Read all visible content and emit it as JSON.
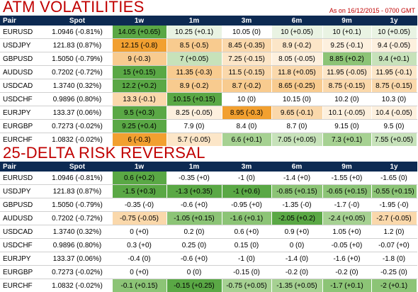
{
  "atm": {
    "title": "ATM VOLATILITIES",
    "as_of": "As on 16/12/2015 - 0700 GMT",
    "headers": [
      "Pair",
      "Spot",
      "1w",
      "1m",
      "3m",
      "6m",
      "9m",
      "1y"
    ],
    "rows": [
      {
        "pair": "EURUSD",
        "spot": "1.0946 (-0.81%)",
        "cells": [
          {
            "v": "14.05 (+0.65)",
            "c": "#5aa845"
          },
          {
            "v": "10.25 (+0.1)",
            "c": "#e9f3e3"
          },
          {
            "v": "10.05 (0)",
            "c": "#ffffff"
          },
          {
            "v": "10 (+0.05)",
            "c": "#e9f3e3"
          },
          {
            "v": "10 (+0.1)",
            "c": "#e9f3e3"
          },
          {
            "v": "10 (+0.05)",
            "c": "#e9f3e3"
          }
        ]
      },
      {
        "pair": "USDJPY",
        "spot": "121.83 (0.87%)",
        "cells": [
          {
            "v": "12.15 (-0.8)",
            "c": "#f2a030"
          },
          {
            "v": "8.5 (-0.5)",
            "c": "#f8cb8f"
          },
          {
            "v": "8.45 (-0.35)",
            "c": "#fad8ab"
          },
          {
            "v": "8.9 (-0.2)",
            "c": "#fce6c8"
          },
          {
            "v": "9.25 (-0.1)",
            "c": "#fdf0de"
          },
          {
            "v": "9.4 (-0.05)",
            "c": "#fdf0de"
          }
        ]
      },
      {
        "pair": "GBPUSD",
        "spot": "1.5050 (-0.79%)",
        "cells": [
          {
            "v": "9 (-0.3)",
            "c": "#f8cb8f"
          },
          {
            "v": "7 (+0.05)",
            "c": "#c7e2ba"
          },
          {
            "v": "7.25 (-0.15)",
            "c": "#fce6c8"
          },
          {
            "v": "8.05 (-0.05)",
            "c": "#fdf0de"
          },
          {
            "v": "8.85 (+0.2)",
            "c": "#8cc476"
          },
          {
            "v": "9.4 (+0.1)",
            "c": "#c7e2ba"
          }
        ]
      },
      {
        "pair": "AUDUSD",
        "spot": "0.7202 (-0.72%)",
        "cells": [
          {
            "v": "15 (+0.15)",
            "c": "#5aa845"
          },
          {
            "v": "11.35 (-0.3)",
            "c": "#f8cb8f"
          },
          {
            "v": "11.5 (-0.15)",
            "c": "#fad8ab"
          },
          {
            "v": "11.8 (+0.05)",
            "c": "#fad8ab"
          },
          {
            "v": "11.95 (-0.05)",
            "c": "#fce6c8"
          },
          {
            "v": "11.95 (-0.1)",
            "c": "#fce6c8"
          }
        ]
      },
      {
        "pair": "USDCAD",
        "spot": "1.3740 (0.32%)",
        "cells": [
          {
            "v": "12.2 (+0.2)",
            "c": "#5aa845"
          },
          {
            "v": "8.9 (-0.2)",
            "c": "#f8cb8f"
          },
          {
            "v": "8.7 (-0.2)",
            "c": "#f8cb8f"
          },
          {
            "v": "8.65 (-0.25)",
            "c": "#f8cb8f"
          },
          {
            "v": "8.75 (-0.15)",
            "c": "#fad8ab"
          },
          {
            "v": "8.75 (-0.15)",
            "c": "#fad8ab"
          }
        ]
      },
      {
        "pair": "USDCHF",
        "spot": "0.9896 (0.80%)",
        "cells": [
          {
            "v": "13.3 (-0.1)",
            "c": "#fad8ab"
          },
          {
            "v": "10.15 (+0.15)",
            "c": "#5aa845"
          },
          {
            "v": "10 (0)",
            "c": "#ffffff"
          },
          {
            "v": "10.15 (0)",
            "c": "#ffffff"
          },
          {
            "v": "10.2 (0)",
            "c": "#ffffff"
          },
          {
            "v": "10.3 (0)",
            "c": "#ffffff"
          }
        ]
      },
      {
        "pair": "EURJPY",
        "spot": "133.37 (0.06%)",
        "cells": [
          {
            "v": "9.5 (+0.3)",
            "c": "#5aa845"
          },
          {
            "v": "8.25 (-0.05)",
            "c": "#fdf0de"
          },
          {
            "v": "8.95 (-0.3)",
            "c": "#f2a030"
          },
          {
            "v": "9.65 (-0.1)",
            "c": "#fad8ab"
          },
          {
            "v": "10.1 (-0.05)",
            "c": "#fdf0de"
          },
          {
            "v": "10.4 (-0.05)",
            "c": "#fdf0de"
          }
        ]
      },
      {
        "pair": "EURGBP",
        "spot": "0.7273 (-0.02%)",
        "cells": [
          {
            "v": "9.25 (+0.4)",
            "c": "#5aa845"
          },
          {
            "v": "7.9 (0)",
            "c": "#ffffff"
          },
          {
            "v": "8.4 (0)",
            "c": "#ffffff"
          },
          {
            "v": "8.7 (0)",
            "c": "#ffffff"
          },
          {
            "v": "9.15 (0)",
            "c": "#ffffff"
          },
          {
            "v": "9.5 (0)",
            "c": "#ffffff"
          }
        ]
      },
      {
        "pair": "EURCHF",
        "spot": "1.0832 (-0.02%)",
        "cells": [
          {
            "v": "6 (-0.3)",
            "c": "#f2a030"
          },
          {
            "v": "5.7 (-0.05)",
            "c": "#fce6c8"
          },
          {
            "v": "6.6 (+0.1)",
            "c": "#a6d192"
          },
          {
            "v": "7.05 (+0.05)",
            "c": "#c7e2ba"
          },
          {
            "v": "7.3 (+0.1)",
            "c": "#a6d192"
          },
          {
            "v": "7.55 (+0.05)",
            "c": "#c7e2ba"
          }
        ]
      }
    ]
  },
  "rr": {
    "title": "25-DELTA RISK REVERSAL",
    "headers": [
      "Pair",
      "Spot",
      "1w",
      "1m",
      "3m",
      "6m",
      "9m",
      "1y"
    ],
    "rows": [
      {
        "pair": "EURUSD",
        "spot": "1.0946 (-0.81%)",
        "cells": [
          {
            "v": "0.6 (+0.2)",
            "c": "#5aa845"
          },
          {
            "v": "-0.35 (+0)",
            "c": "#ffffff"
          },
          {
            "v": "-1 (0)",
            "c": "#ffffff"
          },
          {
            "v": "-1.4 (+0)",
            "c": "#ffffff"
          },
          {
            "v": "-1.55 (+0)",
            "c": "#ffffff"
          },
          {
            "v": "-1.65 (0)",
            "c": "#ffffff"
          }
        ]
      },
      {
        "pair": "USDJPY",
        "spot": "121.83 (0.87%)",
        "cells": [
          {
            "v": "-1.5 (+0.3)",
            "c": "#5aa845"
          },
          {
            "v": "-1.3 (+0.35)",
            "c": "#5aa845"
          },
          {
            "v": "-1 (+0.6)",
            "c": "#5aa845"
          },
          {
            "v": "-0.85 (+0.15)",
            "c": "#8cc476"
          },
          {
            "v": "-0.65 (+0.15)",
            "c": "#8cc476"
          },
          {
            "v": "-0.55 (+0.15)",
            "c": "#8cc476"
          }
        ]
      },
      {
        "pair": "GBPUSD",
        "spot": "1.5050 (-0.79%)",
        "cells": [
          {
            "v": "-0.35 (-0)",
            "c": "#ffffff"
          },
          {
            "v": "-0.6 (+0)",
            "c": "#ffffff"
          },
          {
            "v": "-0.95 (+0)",
            "c": "#ffffff"
          },
          {
            "v": "-1.35 (-0)",
            "c": "#ffffff"
          },
          {
            "v": "-1.7 (-0)",
            "c": "#ffffff"
          },
          {
            "v": "-1.95 (-0)",
            "c": "#ffffff"
          }
        ]
      },
      {
        "pair": "AUDUSD",
        "spot": "0.7202 (-0.72%)",
        "cells": [
          {
            "v": "-0.75 (-0.05)",
            "c": "#fad8ab"
          },
          {
            "v": "-1.05 (+0.15)",
            "c": "#8cc476"
          },
          {
            "v": "-1.6 (+0.1)",
            "c": "#8cc476"
          },
          {
            "v": "-2.05 (+0.2)",
            "c": "#5aa845"
          },
          {
            "v": "-2.4 (+0.05)",
            "c": "#a6d192"
          },
          {
            "v": "-2.7 (-0.05)",
            "c": "#fad8ab"
          }
        ]
      },
      {
        "pair": "USDCAD",
        "spot": "1.3740 (0.32%)",
        "cells": [
          {
            "v": "0 (+0)",
            "c": "#ffffff"
          },
          {
            "v": "0.2 (0)",
            "c": "#ffffff"
          },
          {
            "v": "0.6 (+0)",
            "c": "#ffffff"
          },
          {
            "v": "0.9 (+0)",
            "c": "#ffffff"
          },
          {
            "v": "1.05 (+0)",
            "c": "#ffffff"
          },
          {
            "v": "1.2 (0)",
            "c": "#ffffff"
          }
        ]
      },
      {
        "pair": "USDCHF",
        "spot": "0.9896 (0.80%)",
        "cells": [
          {
            "v": "0.3 (+0)",
            "c": "#ffffff"
          },
          {
            "v": "0.25 (0)",
            "c": "#ffffff"
          },
          {
            "v": "0.15 (0)",
            "c": "#ffffff"
          },
          {
            "v": "0 (0)",
            "c": "#ffffff"
          },
          {
            "v": "-0.05 (+0)",
            "c": "#ffffff"
          },
          {
            "v": "-0.07 (+0)",
            "c": "#ffffff"
          }
        ]
      },
      {
        "pair": "EURJPY",
        "spot": "133.37 (0.06%)",
        "cells": [
          {
            "v": "-0.4 (0)",
            "c": "#ffffff"
          },
          {
            "v": "-0.6 (+0)",
            "c": "#ffffff"
          },
          {
            "v": "-1 (0)",
            "c": "#ffffff"
          },
          {
            "v": "-1.4 (0)",
            "c": "#ffffff"
          },
          {
            "v": "-1.6 (+0)",
            "c": "#ffffff"
          },
          {
            "v": "-1.8 (0)",
            "c": "#ffffff"
          }
        ]
      },
      {
        "pair": "EURGBP",
        "spot": "0.7273 (-0.02%)",
        "cells": [
          {
            "v": "0 (+0)",
            "c": "#ffffff"
          },
          {
            "v": "0 (0)",
            "c": "#ffffff"
          },
          {
            "v": "-0.15 (0)",
            "c": "#ffffff"
          },
          {
            "v": "-0.2 (0)",
            "c": "#ffffff"
          },
          {
            "v": "-0.2 (0)",
            "c": "#ffffff"
          },
          {
            "v": "-0.25 (0)",
            "c": "#ffffff"
          }
        ]
      },
      {
        "pair": "EURCHF",
        "spot": "1.0832 (-0.02%)",
        "cells": [
          {
            "v": "-0.1 (+0.15)",
            "c": "#8cc476"
          },
          {
            "v": "-0.15 (+0.25)",
            "c": "#5aa845"
          },
          {
            "v": "-0.75 (+0.05)",
            "c": "#a6d192"
          },
          {
            "v": "-1.35 (+0.05)",
            "c": "#a6d192"
          },
          {
            "v": "-1.7 (+0.1)",
            "c": "#8cc476"
          },
          {
            "v": "-2 (+0.1)",
            "c": "#8cc476"
          }
        ]
      }
    ]
  }
}
